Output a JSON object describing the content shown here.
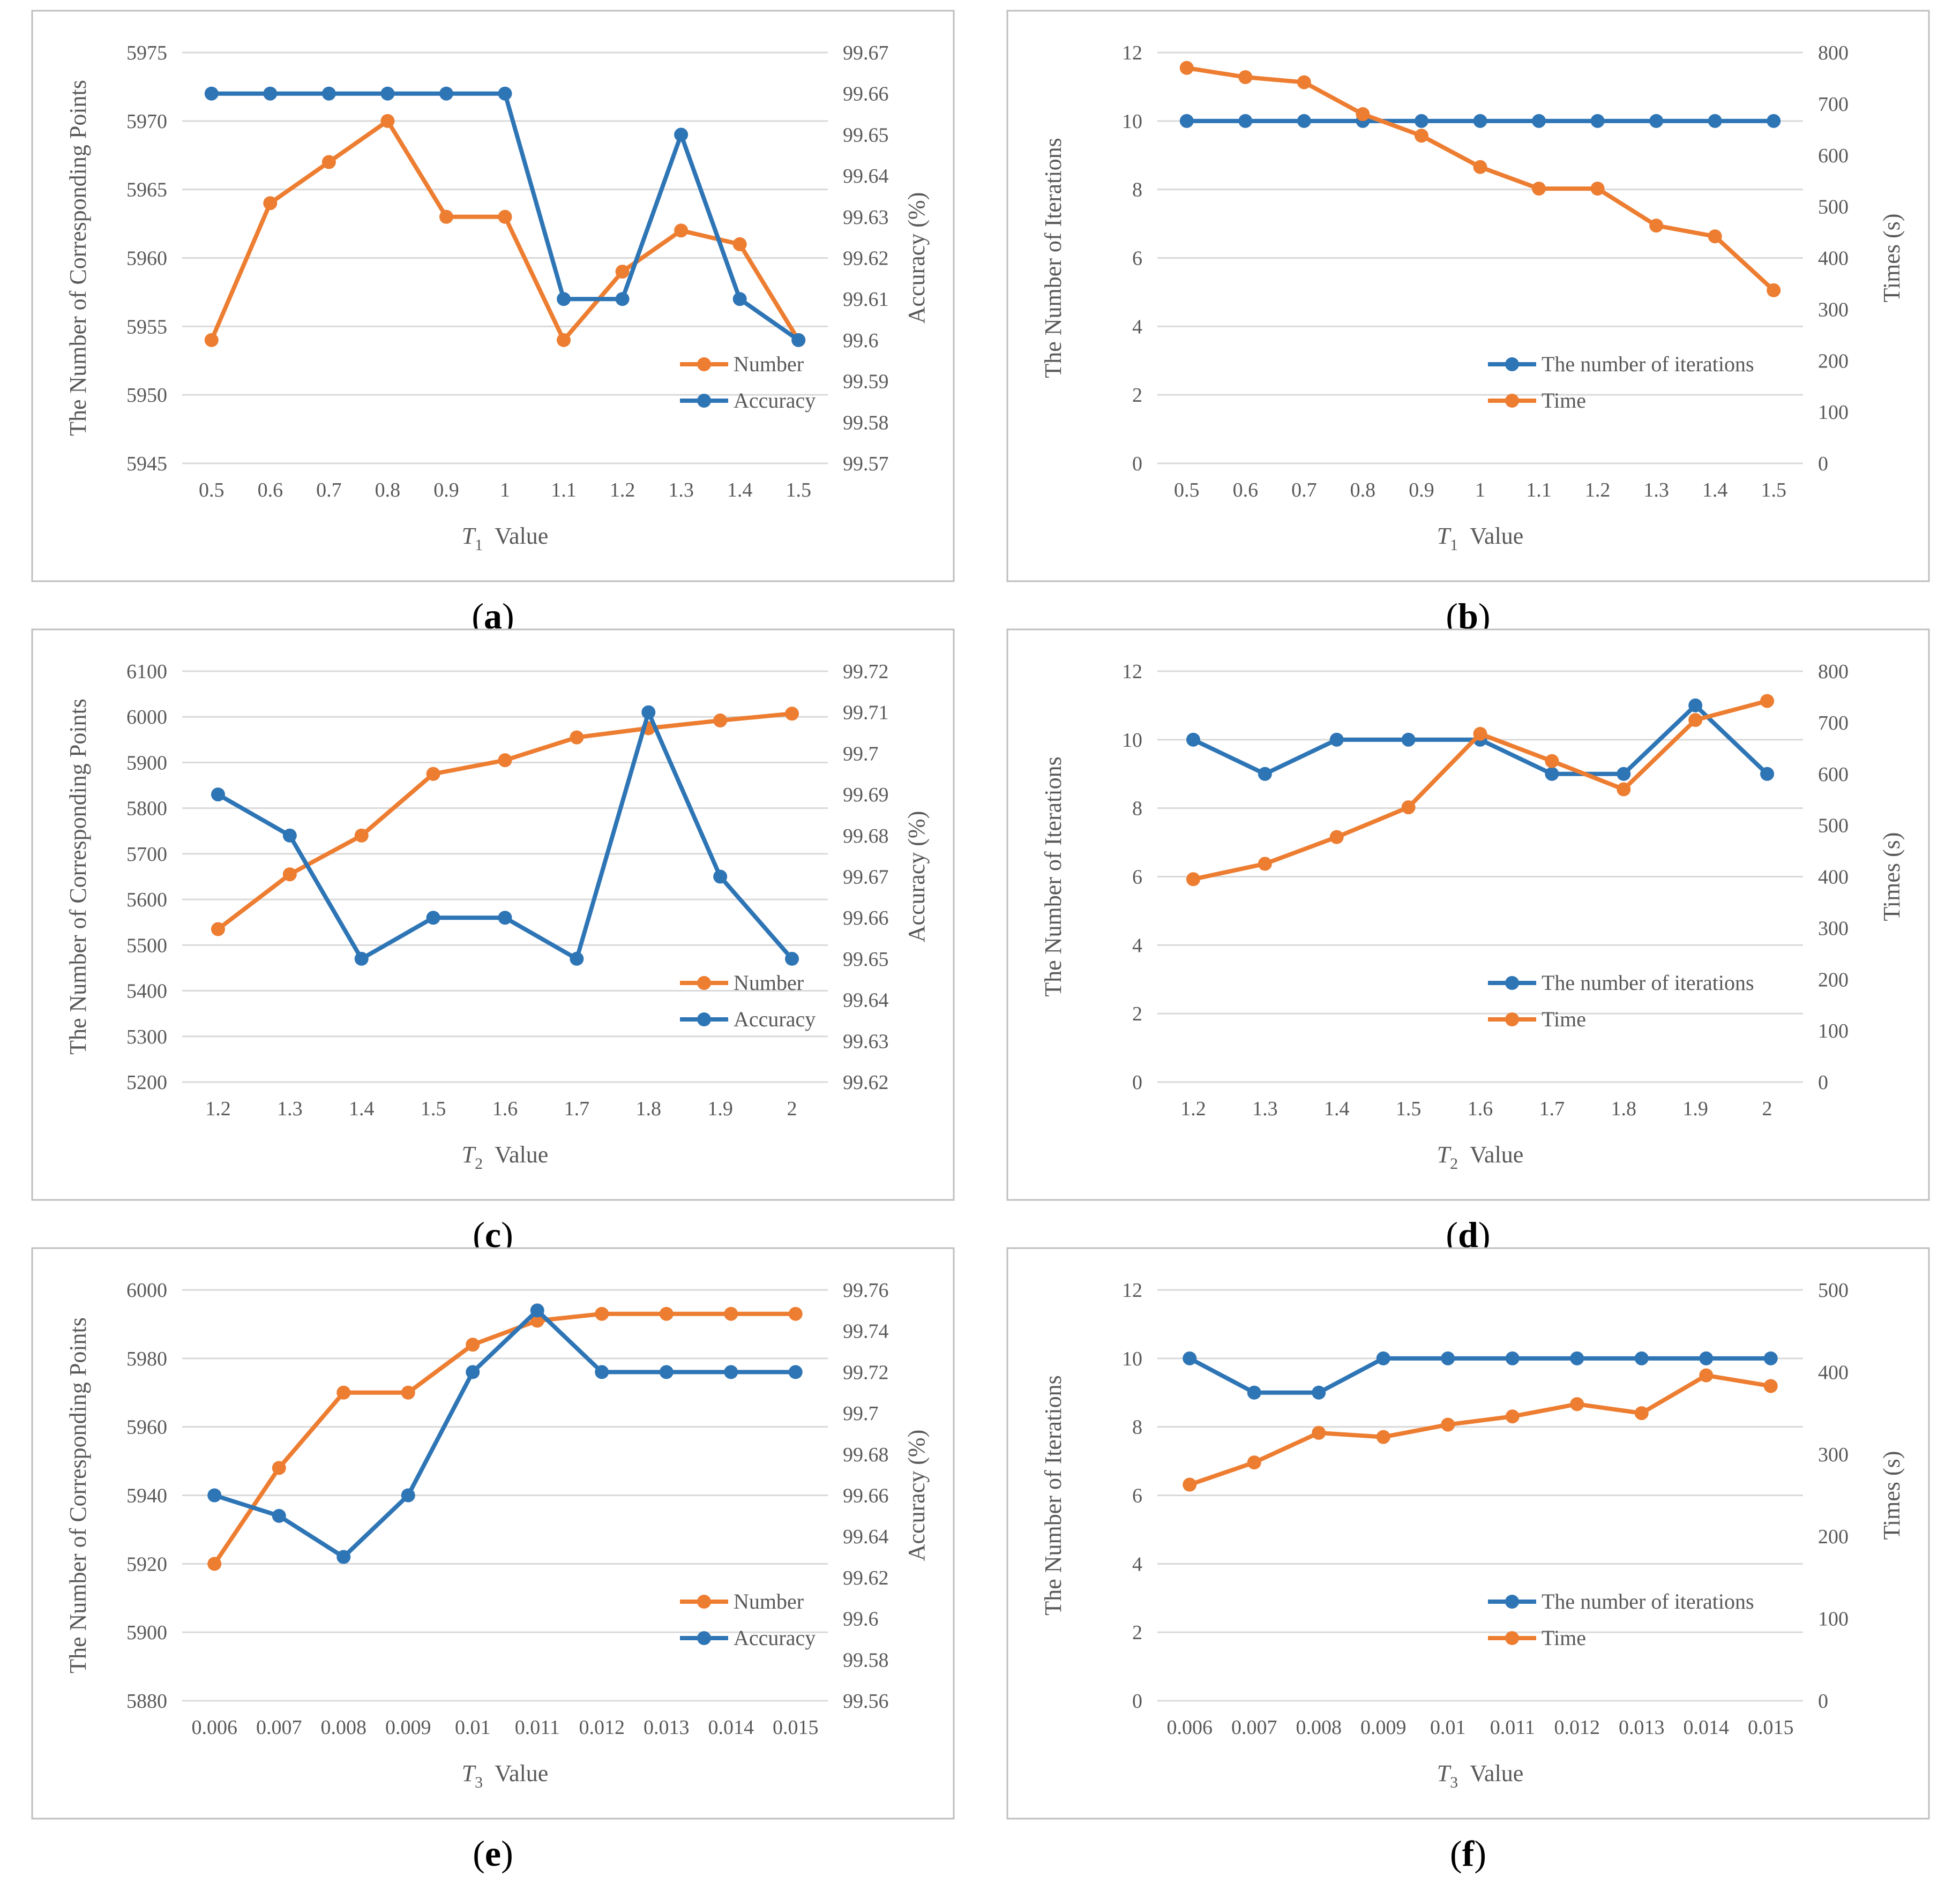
{
  "colors": {
    "orange": "#ED7D31",
    "blue": "#2E75B6",
    "grid": "#D9D9D9",
    "border": "#BFBFBF",
    "text": "#595959"
  },
  "chart_data": [
    {
      "panel_label": "a",
      "type": "line",
      "x": [
        "0.5",
        "0.6",
        "0.7",
        "0.8",
        "0.9",
        "1",
        "1.1",
        "1.2",
        "1.3",
        "1.4",
        "1.5"
      ],
      "xlabel": {
        "symbol": "T",
        "sub": "1",
        "rest": "Value"
      },
      "ylabel": "The Number of Corresponding Points",
      "y2label": "Accuracy (%)",
      "ylim": [
        5945,
        5975
      ],
      "yticks": [
        "5945",
        "5950",
        "5955",
        "5960",
        "5965",
        "5970",
        "5975"
      ],
      "y2lim": [
        99.57,
        99.67
      ],
      "y2ticks": [
        "99.57",
        "99.58",
        "99.59",
        "99.6",
        "99.61",
        "99.62",
        "99.63",
        "99.64",
        "99.65",
        "99.66",
        "99.67"
      ],
      "grid": true,
      "legend_position": "bottom-right",
      "series": [
        {
          "name": "Number",
          "color": "#ED7D31",
          "axis": "left",
          "values": [
            5954,
            5964,
            5967,
            5970,
            5963,
            5963,
            5954,
            5959,
            5962,
            5961,
            5954
          ]
        },
        {
          "name": "Accuracy",
          "color": "#2E75B6",
          "axis": "right",
          "values": [
            99.66,
            99.66,
            99.66,
            99.66,
            99.66,
            99.66,
            99.61,
            99.61,
            99.65,
            99.61,
            99.6
          ]
        }
      ]
    },
    {
      "panel_label": "b",
      "type": "line",
      "x": [
        "0.5",
        "0.6",
        "0.7",
        "0.8",
        "0.9",
        "1",
        "1.1",
        "1.2",
        "1.3",
        "1.4",
        "1.5"
      ],
      "xlabel": {
        "symbol": "T",
        "sub": "1",
        "rest": "Value"
      },
      "ylabel": "The Number of Iterations",
      "y2label": "Times (s)",
      "ylim": [
        0,
        12
      ],
      "yticks": [
        "0",
        "2",
        "4",
        "6",
        "8",
        "10",
        "12"
      ],
      "y2lim": [
        0,
        800
      ],
      "y2ticks": [
        "0",
        "100",
        "200",
        "300",
        "400",
        "500",
        "600",
        "700",
        "800"
      ],
      "grid": true,
      "legend_position": "bottom-right",
      "series": [
        {
          "name": "The number of iterations",
          "color": "#2E75B6",
          "axis": "left",
          "values": [
            10,
            10,
            10,
            10,
            10,
            10,
            10,
            10,
            10,
            10,
            10
          ]
        },
        {
          "name": "Time",
          "color": "#ED7D31",
          "axis": "right",
          "values": [
            770,
            752,
            742,
            680,
            638,
            577,
            535,
            535,
            463,
            442,
            337
          ]
        }
      ]
    },
    {
      "panel_label": "c",
      "type": "line",
      "x": [
        "1.2",
        "1.3",
        "1.4",
        "1.5",
        "1.6",
        "1.7",
        "1.8",
        "1.9",
        "2"
      ],
      "xlabel": {
        "symbol": "T",
        "sub": "2",
        "rest": "Value"
      },
      "ylabel": "The Number of Corresponding Points",
      "y2label": "Accuracy (%)",
      "ylim": [
        5200,
        6100
      ],
      "yticks": [
        "5200",
        "5300",
        "5400",
        "5500",
        "5600",
        "5700",
        "5800",
        "5900",
        "6000",
        "6100"
      ],
      "y2lim": [
        99.62,
        99.72
      ],
      "y2ticks": [
        "99.62",
        "99.63",
        "99.64",
        "99.65",
        "99.66",
        "99.67",
        "99.68",
        "99.69",
        "99.7",
        "99.71",
        "99.72"
      ],
      "grid": true,
      "legend_position": "bottom-right",
      "series": [
        {
          "name": "Number",
          "color": "#ED7D31",
          "axis": "left",
          "values": [
            5535,
            5655,
            5740,
            5875,
            5905,
            5955,
            5975,
            5992,
            6007
          ]
        },
        {
          "name": "Accuracy",
          "color": "#2E75B6",
          "axis": "right",
          "values": [
            99.69,
            99.68,
            99.65,
            99.66,
            99.66,
            99.65,
            99.71,
            99.67,
            99.65
          ]
        }
      ]
    },
    {
      "panel_label": "d",
      "type": "line",
      "x": [
        "1.2",
        "1.3",
        "1.4",
        "1.5",
        "1.6",
        "1.7",
        "1.8",
        "1.9",
        "2"
      ],
      "xlabel": {
        "symbol": "T",
        "sub": "2",
        "rest": "Value"
      },
      "ylabel": "The Number of Iterations",
      "y2label": "Times (s)",
      "ylim": [
        0,
        12
      ],
      "yticks": [
        "0",
        "2",
        "4",
        "6",
        "8",
        "10",
        "12"
      ],
      "y2lim": [
        0,
        800
      ],
      "y2ticks": [
        "0",
        "100",
        "200",
        "300",
        "400",
        "500",
        "600",
        "700",
        "800"
      ],
      "grid": true,
      "legend_position": "bottom-right",
      "series": [
        {
          "name": "The number of iterations",
          "color": "#2E75B6",
          "axis": "left",
          "values": [
            10,
            9,
            10,
            10,
            10,
            9,
            9,
            11,
            9
          ]
        },
        {
          "name": "Time",
          "color": "#ED7D31",
          "axis": "right",
          "values": [
            395,
            425,
            477,
            535,
            678,
            625,
            570,
            705,
            742
          ]
        }
      ]
    },
    {
      "panel_label": "e",
      "type": "line",
      "x": [
        "0.006",
        "0.007",
        "0.008",
        "0.009",
        "0.01",
        "0.011",
        "0.012",
        "0.013",
        "0.014",
        "0.015"
      ],
      "xlabel": {
        "symbol": "T",
        "sub": "3",
        "rest": "Value"
      },
      "ylabel": "The Number of Corresponding Points",
      "y2label": "Accuracy (%)",
      "ylim": [
        5880,
        6000
      ],
      "yticks": [
        "5880",
        "5900",
        "5920",
        "5940",
        "5960",
        "5980",
        "6000"
      ],
      "y2lim": [
        99.56,
        99.76
      ],
      "y2ticks": [
        "99.56",
        "99.58",
        "99.6",
        "99.62",
        "99.64",
        "99.66",
        "99.68",
        "99.7",
        "99.72",
        "99.74",
        "99.76"
      ],
      "grid": true,
      "legend_position": "bottom-right",
      "series": [
        {
          "name": "Number",
          "color": "#ED7D31",
          "axis": "left",
          "values": [
            5920,
            5948,
            5970,
            5970,
            5984,
            5991,
            5993,
            5993,
            5993,
            5993
          ]
        },
        {
          "name": "Accuracy",
          "color": "#2E75B6",
          "axis": "right",
          "values": [
            99.66,
            99.65,
            99.63,
            99.66,
            99.72,
            99.75,
            99.72,
            99.72,
            99.72,
            99.72
          ]
        }
      ]
    },
    {
      "panel_label": "f",
      "type": "line",
      "x": [
        "0.006",
        "0.007",
        "0.008",
        "0.009",
        "0.01",
        "0.011",
        "0.012",
        "0.013",
        "0.014",
        "0.015"
      ],
      "xlabel": {
        "symbol": "T",
        "sub": "3",
        "rest": "Value"
      },
      "ylabel": "The Number of Iterations",
      "y2label": "Times (s)",
      "ylim": [
        0,
        12
      ],
      "yticks": [
        "0",
        "2",
        "4",
        "6",
        "8",
        "10",
        "12"
      ],
      "y2lim": [
        0,
        500
      ],
      "y2ticks": [
        "0",
        "100",
        "200",
        "300",
        "400",
        "500"
      ],
      "grid": true,
      "legend_position": "bottom-right",
      "series": [
        {
          "name": "The number of iterations",
          "color": "#2E75B6",
          "axis": "left",
          "values": [
            10,
            9,
            9,
            10,
            10,
            10,
            10,
            10,
            10,
            10
          ]
        },
        {
          "name": "Time",
          "color": "#ED7D31",
          "axis": "right",
          "values": [
            263,
            290,
            326,
            321,
            336,
            346,
            361,
            350,
            396,
            383
          ]
        }
      ]
    }
  ]
}
